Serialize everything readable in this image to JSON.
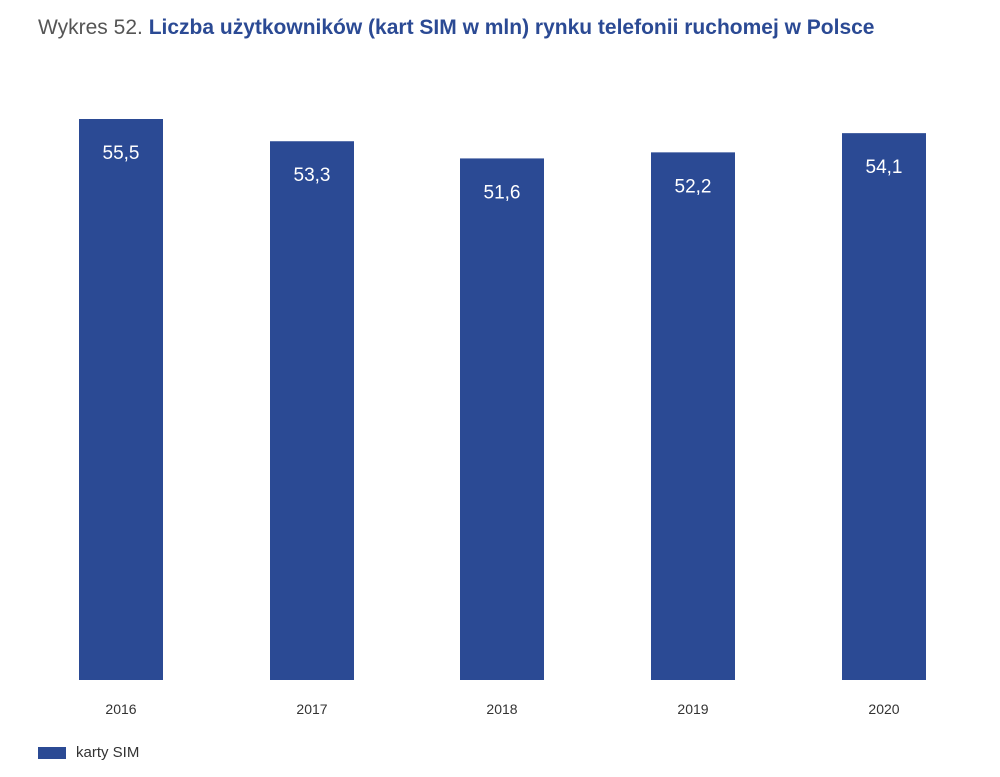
{
  "title": {
    "prefix": "Wykres 52.",
    "main": "Liczba użytkowników (kart SIM w mln) rynku telefonii ruchomej w Polsce"
  },
  "colors": {
    "bar": "#2b4a94",
    "bar_label": "#ffffff",
    "tick_label": "#333333"
  },
  "legend": {
    "label": "karty SIM"
  },
  "chart_data": {
    "type": "bar",
    "title": "Liczba użytkowników (kart SIM w mln) rynku telefonii ruchomej w Polsce",
    "categories": [
      "2016",
      "2017",
      "2018",
      "2019",
      "2020"
    ],
    "series": [
      {
        "name": "karty SIM",
        "values": [
          55.5,
          53.3,
          51.6,
          52.2,
          54.1
        ],
        "labels": [
          "55,5",
          "53,3",
          "51,6",
          "52,2",
          "54,1"
        ]
      }
    ],
    "xlabel": "",
    "ylabel": "",
    "ylim": [
      0,
      55.5
    ],
    "grid": false,
    "legend_position": "bottom-left"
  }
}
